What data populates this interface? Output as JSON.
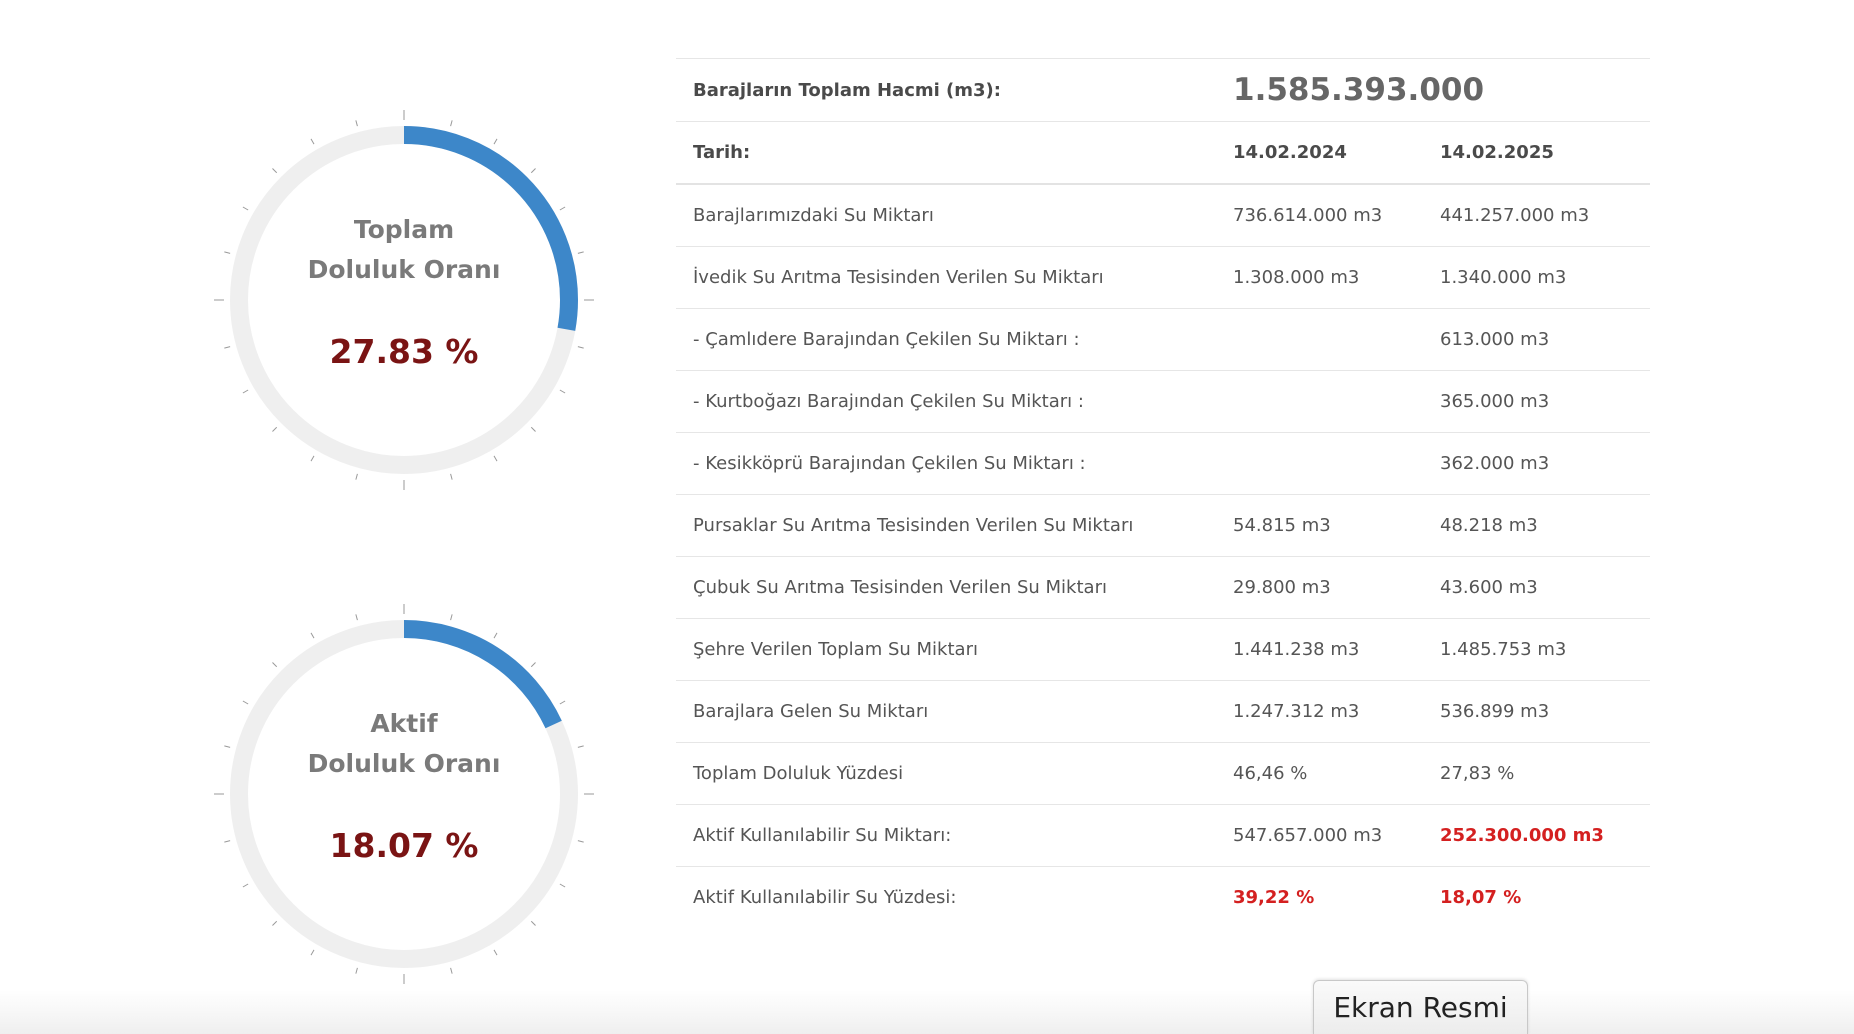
{
  "gauges": [
    {
      "title_line1": "Toplam",
      "title_line2": "Doluluk Oranı",
      "value_text": "27.83 %",
      "fill_percent": 27.83
    },
    {
      "title_line1": "Aktif",
      "title_line2": "Doluluk Oranı",
      "value_text": "18.07 %",
      "fill_percent": 18.07
    }
  ],
  "table": {
    "total_label": "Barajların Toplam Hacmi (m3):",
    "total_value": "1.585.393.000",
    "date_label": "Tarih:",
    "date_1": "14.02.2024",
    "date_2": "14.02.2025",
    "rows": [
      {
        "label": "Barajlarımızdaki Su Miktarı",
        "v1": "736.614.000 m3",
        "v2": "441.257.000 m3"
      },
      {
        "label": "İvedik Su Arıtma Tesisinden Verilen Su Miktarı",
        "v1": "1.308.000 m3",
        "v2": "1.340.000 m3"
      },
      {
        "label": "- Çamlıdere Barajından Çekilen Su Miktarı :",
        "v1": "",
        "v2": "613.000 m3"
      },
      {
        "label": "- Kurtboğazı Barajından Çekilen Su Miktarı :",
        "v1": "",
        "v2": "365.000 m3"
      },
      {
        "label": "- Kesikköprü Barajından Çekilen Su Miktarı :",
        "v1": "",
        "v2": "362.000 m3"
      },
      {
        "label": "Pursaklar Su Arıtma Tesisinden Verilen Su Miktarı",
        "v1": "54.815 m3",
        "v2": "48.218 m3"
      },
      {
        "label": "Çubuk Su Arıtma Tesisinden Verilen Su Miktarı",
        "v1": "29.800 m3",
        "v2": "43.600 m3"
      },
      {
        "label": "Şehre Verilen Toplam Su Miktarı",
        "v1": "1.441.238 m3",
        "v2": "1.485.753 m3"
      },
      {
        "label": "Barajlara Gelen Su Miktarı",
        "v1": "1.247.312 m3",
        "v2": "536.899 m3"
      },
      {
        "label": "Toplam Doluluk Yüzdesi",
        "v1": "46,46 %",
        "v2": "27,83 %"
      },
      {
        "label": "Aktif Kullanılabilir Su Miktarı:",
        "v1": "547.657.000 m3",
        "v2": "252.300.000 m3"
      },
      {
        "label": "Aktif Kullanılabilir Su Yüzdesi:",
        "v1": "39,22 %",
        "v2": "18,07 %"
      }
    ]
  },
  "screenshot_button": "Ekran Resmi",
  "colors": {
    "gauge_fill": "#3d87c9",
    "gauge_track": "#efefef",
    "gauge_value": "#7a1414",
    "highlight_red": "#d42020"
  }
}
